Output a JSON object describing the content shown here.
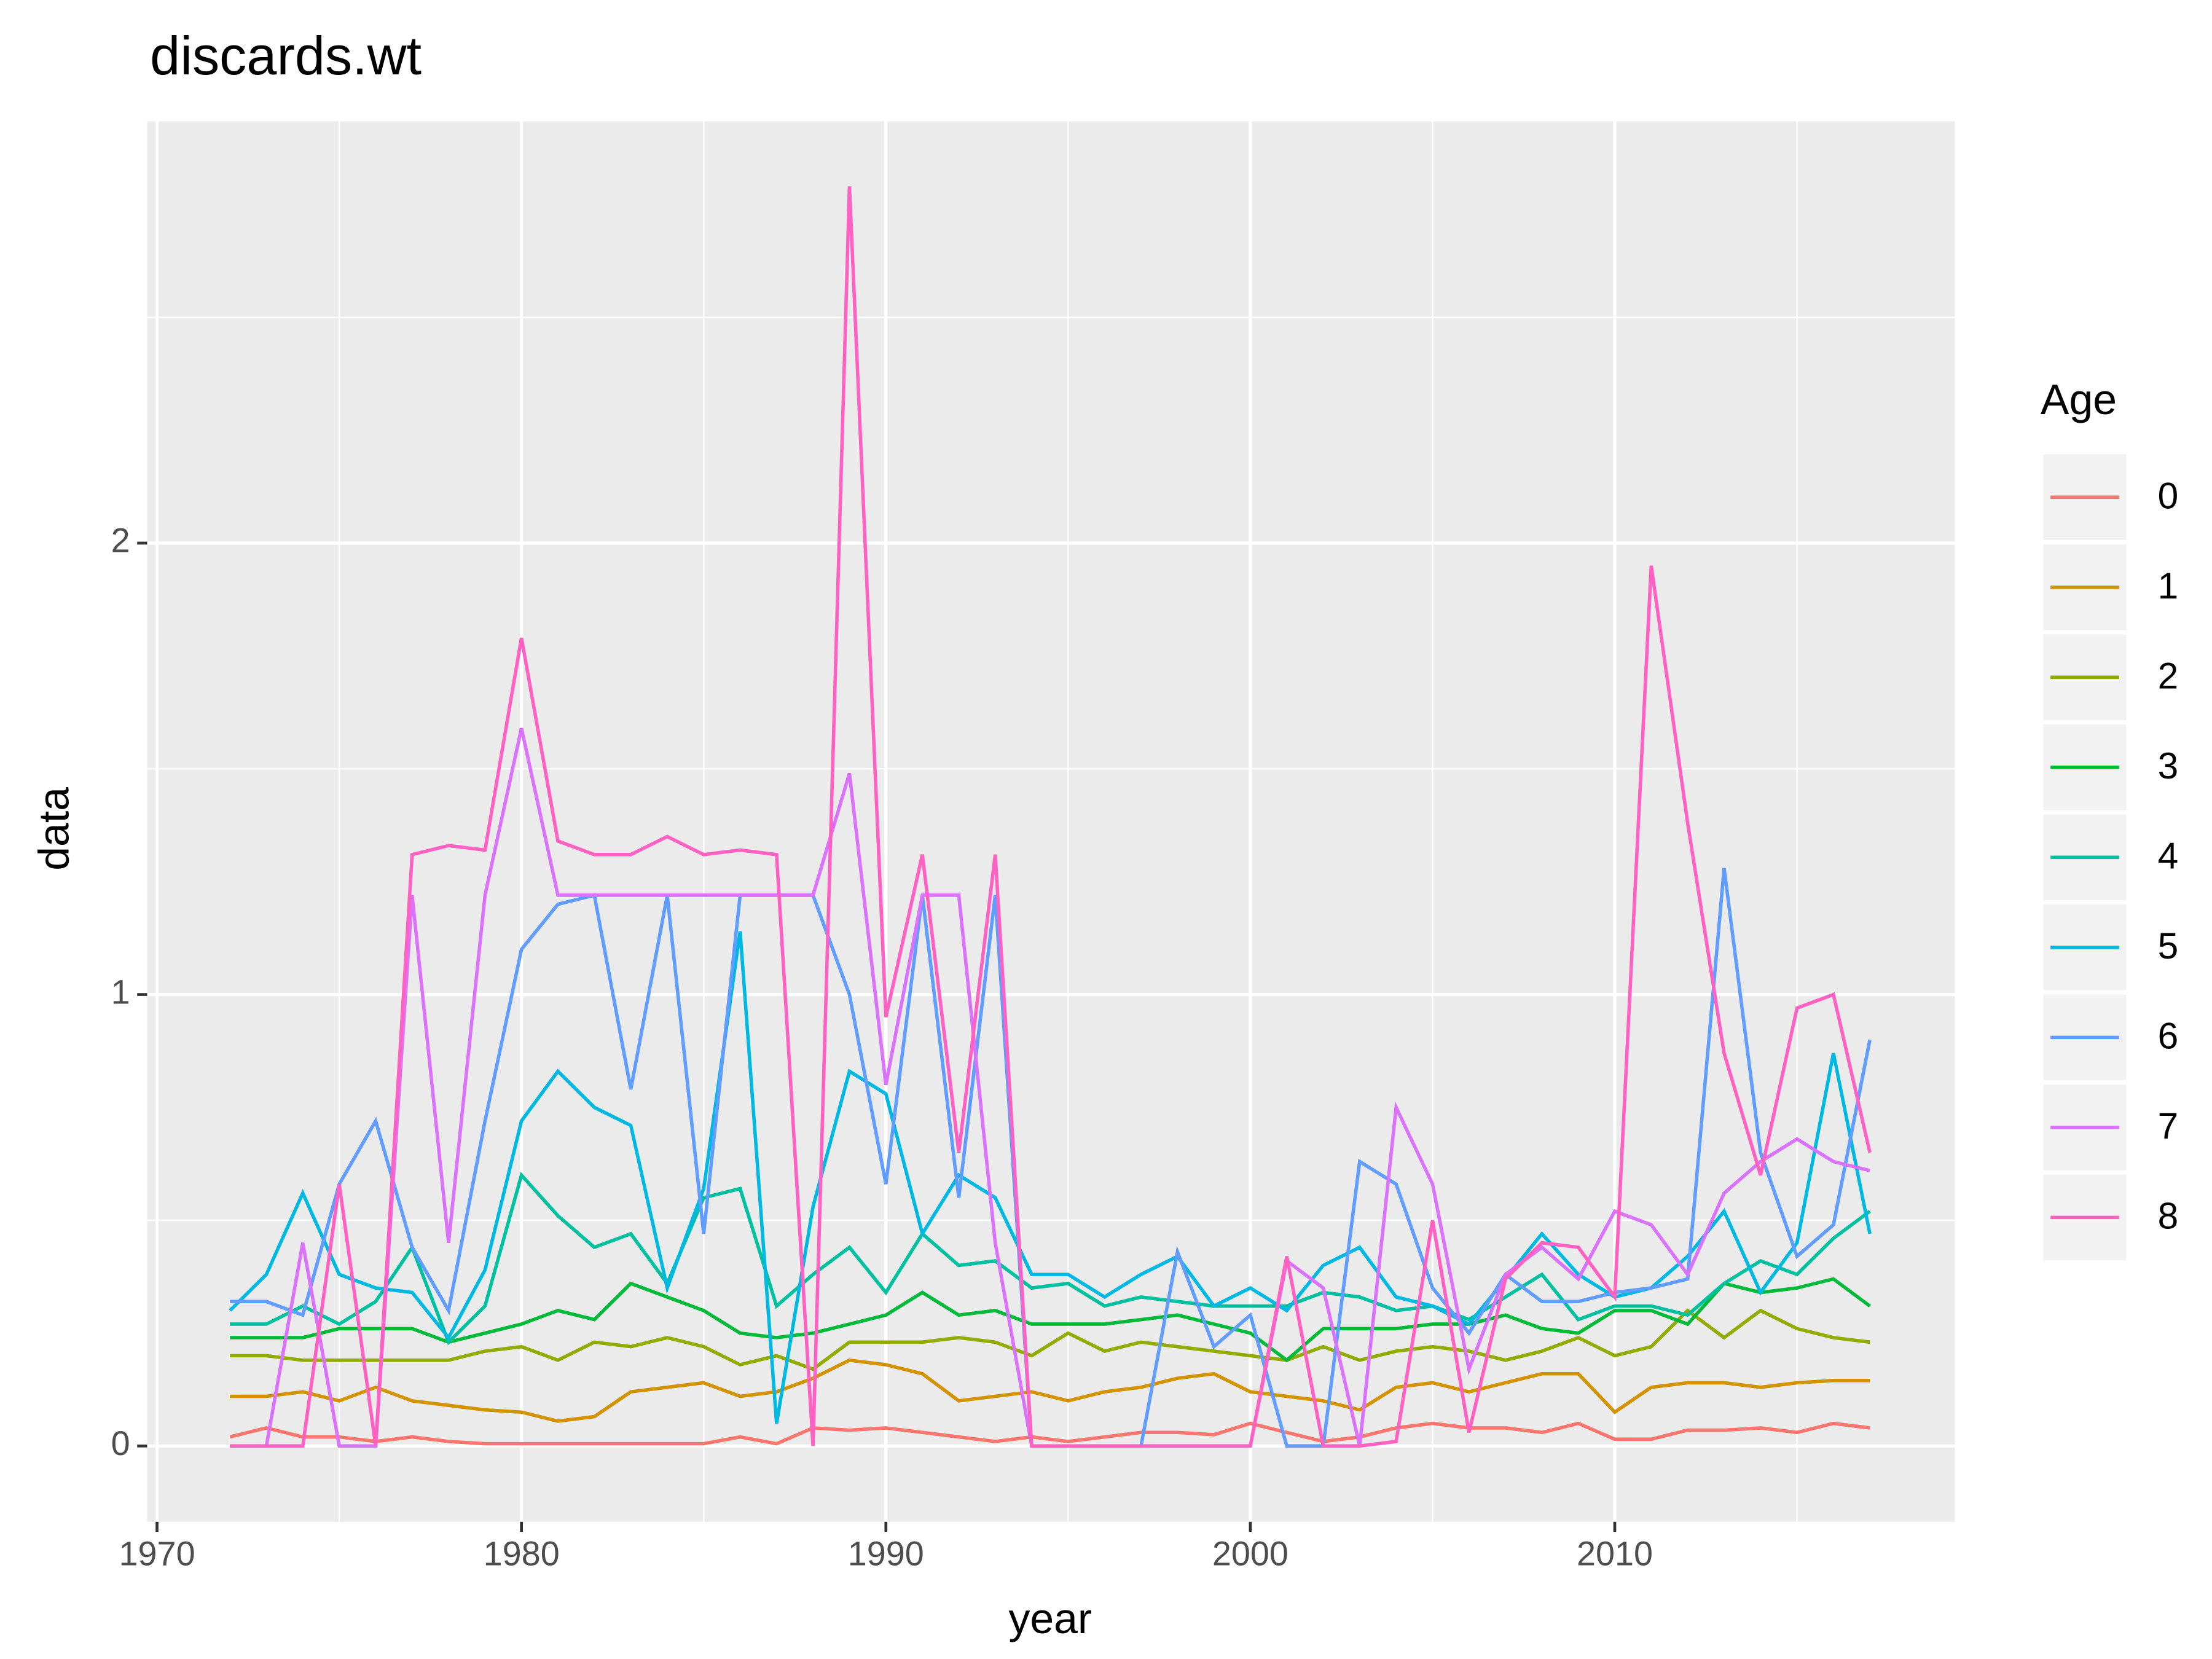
{
  "chart_data": {
    "type": "line",
    "title": "discards.wt",
    "x_label": "year",
    "y_label": "data",
    "legend_title": "Age",
    "legend_position": "right",
    "grid": true,
    "xlim": [
      1969.73,
      2019.33
    ],
    "ylim": [
      -0.168,
      2.934
    ],
    "xticks": [
      1970,
      1980,
      1990,
      2000,
      2010
    ],
    "yticks": [
      0,
      1,
      2
    ],
    "xminor": [
      1975,
      1985,
      1995,
      2005,
      2015
    ],
    "yminor": [
      0.5,
      1.5,
      2.5
    ],
    "x": [
      1972,
      1973,
      1974,
      1975,
      1976,
      1977,
      1978,
      1979,
      1980,
      1981,
      1982,
      1983,
      1984,
      1985,
      1986,
      1987,
      1988,
      1989,
      1990,
      1991,
      1992,
      1993,
      1994,
      1995,
      1996,
      1997,
      1998,
      1999,
      2000,
      2001,
      2002,
      2003,
      2004,
      2005,
      2006,
      2007,
      2008,
      2009,
      2010,
      2011,
      2012,
      2013,
      2014,
      2015,
      2016,
      2017
    ],
    "series": [
      {
        "name": "0",
        "color": "#F8766D",
        "values": [
          0.02,
          0.04,
          0.02,
          0.02,
          0.01,
          0.02,
          0.01,
          0.005,
          0.005,
          0.005,
          0.005,
          0.005,
          0.005,
          0.005,
          0.02,
          0.005,
          0.04,
          0.035,
          0.04,
          0.03,
          0.02,
          0.01,
          0.02,
          0.01,
          0.02,
          0.03,
          0.03,
          0.025,
          0.05,
          0.03,
          0.01,
          0.02,
          0.04,
          0.05,
          0.04,
          0.04,
          0.03,
          0.05,
          0.015,
          0.015,
          0.035,
          0.035,
          0.04,
          0.03,
          0.05,
          0.04
        ]
      },
      {
        "name": "1",
        "color": "#D39200",
        "values": [
          0.11,
          0.11,
          0.12,
          0.1,
          0.13,
          0.1,
          0.09,
          0.08,
          0.075,
          0.055,
          0.065,
          0.12,
          0.13,
          0.14,
          0.11,
          0.12,
          0.15,
          0.19,
          0.18,
          0.16,
          0.1,
          0.11,
          0.12,
          0.1,
          0.12,
          0.13,
          0.15,
          0.16,
          0.12,
          0.11,
          0.1,
          0.08,
          0.13,
          0.14,
          0.12,
          0.14,
          0.16,
          0.16,
          0.075,
          0.13,
          0.14,
          0.14,
          0.13,
          0.14,
          0.145,
          0.145
        ]
      },
      {
        "name": "2",
        "color": "#93AA00",
        "values": [
          0.2,
          0.2,
          0.19,
          0.19,
          0.19,
          0.19,
          0.19,
          0.21,
          0.22,
          0.19,
          0.23,
          0.22,
          0.24,
          0.22,
          0.18,
          0.2,
          0.17,
          0.23,
          0.23,
          0.23,
          0.24,
          0.23,
          0.2,
          0.25,
          0.21,
          0.23,
          0.22,
          0.21,
          0.2,
          0.19,
          0.22,
          0.19,
          0.21,
          0.22,
          0.21,
          0.19,
          0.21,
          0.24,
          0.2,
          0.22,
          0.3,
          0.24,
          0.3,
          0.26,
          0.24,
          0.23
        ]
      },
      {
        "name": "3",
        "color": "#00BA38",
        "values": [
          0.24,
          0.24,
          0.24,
          0.26,
          0.26,
          0.26,
          0.23,
          0.25,
          0.27,
          0.3,
          0.28,
          0.36,
          0.33,
          0.3,
          0.25,
          0.24,
          0.25,
          0.27,
          0.29,
          0.34,
          0.29,
          0.3,
          0.27,
          0.27,
          0.27,
          0.28,
          0.29,
          0.27,
          0.25,
          0.19,
          0.26,
          0.26,
          0.26,
          0.27,
          0.27,
          0.29,
          0.26,
          0.25,
          0.3,
          0.3,
          0.27,
          0.36,
          0.34,
          0.35,
          0.37,
          0.31
        ]
      },
      {
        "name": "4",
        "color": "#00C19F",
        "values": [
          0.27,
          0.27,
          0.31,
          0.27,
          0.32,
          0.44,
          0.23,
          0.31,
          0.6,
          0.51,
          0.44,
          0.47,
          0.36,
          0.55,
          0.57,
          0.31,
          0.38,
          0.44,
          0.34,
          0.47,
          0.4,
          0.41,
          0.35,
          0.36,
          0.31,
          0.33,
          0.32,
          0.31,
          0.31,
          0.31,
          0.34,
          0.33,
          0.3,
          0.31,
          0.28,
          0.33,
          0.38,
          0.28,
          0.31,
          0.31,
          0.29,
          0.36,
          0.41,
          0.38,
          0.46,
          0.52
        ]
      },
      {
        "name": "5",
        "color": "#00B9E3",
        "values": [
          0.3,
          0.38,
          0.56,
          0.38,
          0.35,
          0.34,
          0.24,
          0.39,
          0.72,
          0.83,
          0.75,
          0.71,
          0.35,
          0.57,
          1.14,
          0.05,
          0.53,
          0.83,
          0.78,
          0.47,
          0.6,
          0.55,
          0.38,
          0.38,
          0.33,
          0.38,
          0.42,
          0.31,
          0.35,
          0.3,
          0.4,
          0.44,
          0.33,
          0.31,
          0.27,
          0.37,
          0.47,
          0.38,
          0.33,
          0.35,
          0.42,
          0.52,
          0.34,
          0.45,
          0.87,
          0.47
        ]
      },
      {
        "name": "6",
        "color": "#619CFF",
        "values": [
          0.32,
          0.32,
          0.29,
          0.58,
          0.72,
          0.44,
          0.3,
          0.72,
          1.1,
          1.2,
          1.22,
          0.79,
          1.22,
          0.47,
          1.22,
          1.22,
          1.22,
          1.0,
          0.58,
          1.22,
          0.55,
          1.22,
          0,
          0,
          0,
          0,
          0.43,
          0.22,
          0.29,
          0,
          0,
          0.63,
          0.58,
          0.35,
          0.25,
          0.38,
          0.32,
          0.32,
          0.34,
          0.35,
          0.37,
          1.28,
          0.65,
          0.42,
          0.49,
          0.9
        ]
      },
      {
        "name": "7",
        "color": "#DB72FB",
        "values": [
          0,
          0,
          0.45,
          0,
          0,
          1.22,
          0.45,
          1.22,
          1.59,
          1.22,
          1.22,
          1.22,
          1.22,
          1.22,
          1.22,
          1.22,
          1.22,
          1.49,
          0.8,
          1.22,
          1.22,
          0.45,
          0,
          0,
          0,
          0,
          0,
          0,
          0,
          0.41,
          0.35,
          0,
          0.75,
          0.58,
          0.17,
          0.38,
          0.44,
          0.37,
          0.52,
          0.49,
          0.38,
          0.56,
          0.63,
          0.68,
          0.63,
          0.61
        ]
      },
      {
        "name": "8",
        "color": "#FF61C3",
        "values": [
          0,
          0,
          0,
          0.58,
          0,
          1.31,
          1.33,
          1.32,
          1.79,
          1.34,
          1.31,
          1.31,
          1.35,
          1.31,
          1.32,
          1.31,
          0,
          2.79,
          0.95,
          1.31,
          0.65,
          1.31,
          0,
          0,
          0,
          0,
          0,
          0,
          0,
          0.42,
          0,
          0,
          0.01,
          0.5,
          0.03,
          0.37,
          0.45,
          0.44,
          0.33,
          1.95,
          1.38,
          0.87,
          0.6,
          0.97,
          1.0,
          0.65
        ]
      }
    ]
  }
}
